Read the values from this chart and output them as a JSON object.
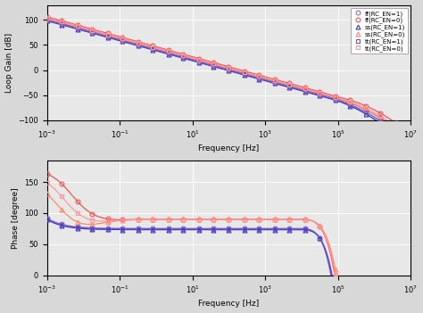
{
  "freq_range": [
    0.001,
    10000000.0
  ],
  "gain_ylim": [
    -100,
    130
  ],
  "phase_ylim": [
    0,
    185
  ],
  "gain_yticks": [
    -100,
    -50,
    0,
    50,
    100
  ],
  "phase_yticks": [
    0,
    50,
    100,
    150
  ],
  "xlabel": "Frequency [Hz]",
  "gain_ylabel": "Loop Gain [dB]",
  "phase_ylabel": "Phase [degree]",
  "series": [
    {
      "label": "ff(RC_EN=1)",
      "color": "#9966BB",
      "marker": "o",
      "rc_en": 1,
      "corner": "ff"
    },
    {
      "label": "ff(RC_EN=0)",
      "color": "#EE5555",
      "marker": "o",
      "rc_en": 0,
      "corner": "ff"
    },
    {
      "label": "ss(RC_EN=1)",
      "color": "#3333BB",
      "marker": "^",
      "rc_en": 1,
      "corner": "ss"
    },
    {
      "label": "ss(RC_EN=0)",
      "color": "#FF8866",
      "marker": "^",
      "rc_en": 0,
      "corner": "ss"
    },
    {
      "label": "tt(RC_EN=1)",
      "color": "#6655CC",
      "marker": "s",
      "rc_en": 1,
      "corner": "tt"
    },
    {
      "label": "tt(RC_EN=0)",
      "color": "#FF9999",
      "marker": "s",
      "rc_en": 0,
      "corner": "tt"
    }
  ],
  "background_color": "#e8e8e8",
  "grid_color": "#ffffff",
  "figsize": [
    4.74,
    3.51
  ],
  "dpi": 100
}
